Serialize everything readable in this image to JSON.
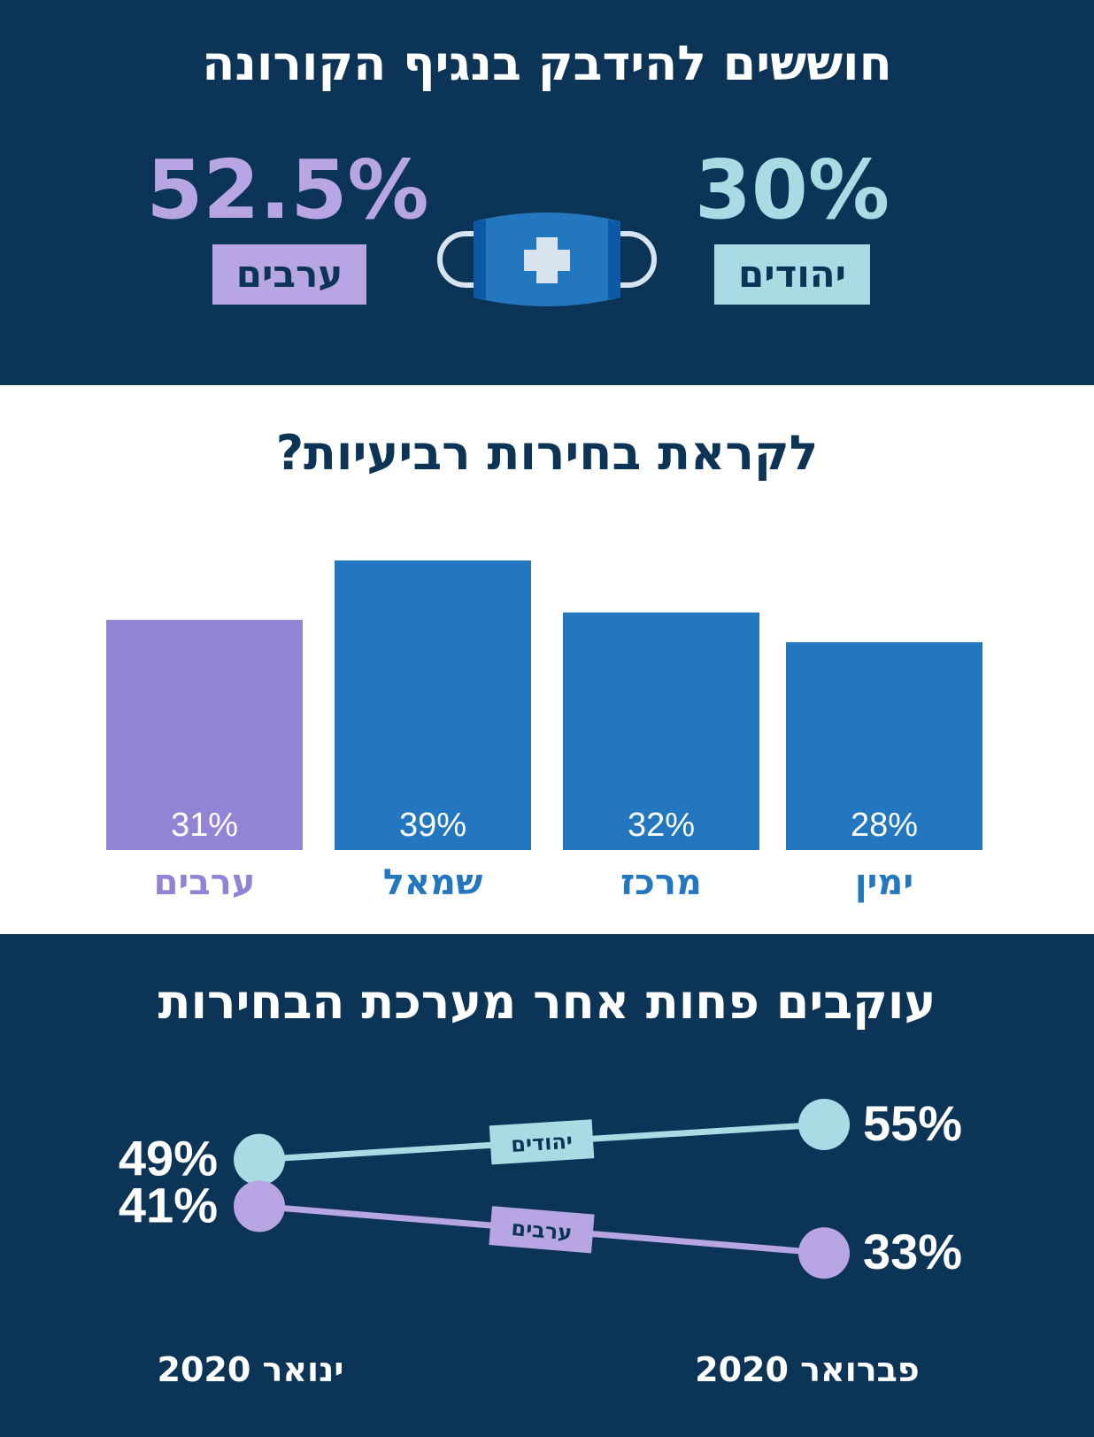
{
  "top": {
    "title": "חוששים להידבק בנגיף הקורונה",
    "arabs": {
      "value": "52.5%",
      "label": "ערבים"
    },
    "jews": {
      "value": "30%",
      "label": "יהודים"
    }
  },
  "middle": {
    "title": "לקראת בחירות רביעיות?"
  },
  "bottom": {
    "title": "עוקבים פחות אחר מערכת הבחירות",
    "date_start": "ינואר 2020",
    "date_end": "פברואר 2020"
  },
  "colors": {
    "navy": "#0c3456",
    "blue": "#2277bf",
    "purple_bar": "#9383d5",
    "light_purple": "#b7a6e3",
    "light_blue": "#a9dbe5"
  },
  "chart_data": [
    {
      "type": "bar",
      "categories": [
        "ערבים",
        "שמאל",
        "מרכז",
        "ימין"
      ],
      "values": [
        31,
        39,
        32,
        28
      ],
      "value_labels": [
        "31%",
        "39%",
        "32%",
        "28%"
      ],
      "bar_colors": [
        "#9383d5",
        "#2277bf",
        "#2277bf",
        "#2277bf"
      ],
      "label_colors": [
        "#9383d5",
        "#2277bf",
        "#2277bf",
        "#2277bf"
      ],
      "ylim": [
        0,
        40
      ]
    },
    {
      "type": "line",
      "x": [
        "ינואר 2020",
        "פברואר 2020"
      ],
      "series": [
        {
          "name": "יהודים",
          "values": [
            49,
            55
          ],
          "value_labels": [
            "49%",
            "55%"
          ],
          "color": "#a9dbe5"
        },
        {
          "name": "ערבים",
          "values": [
            41,
            33
          ],
          "value_labels": [
            "41%",
            "33%"
          ],
          "color": "#b7a6e3"
        }
      ]
    }
  ]
}
